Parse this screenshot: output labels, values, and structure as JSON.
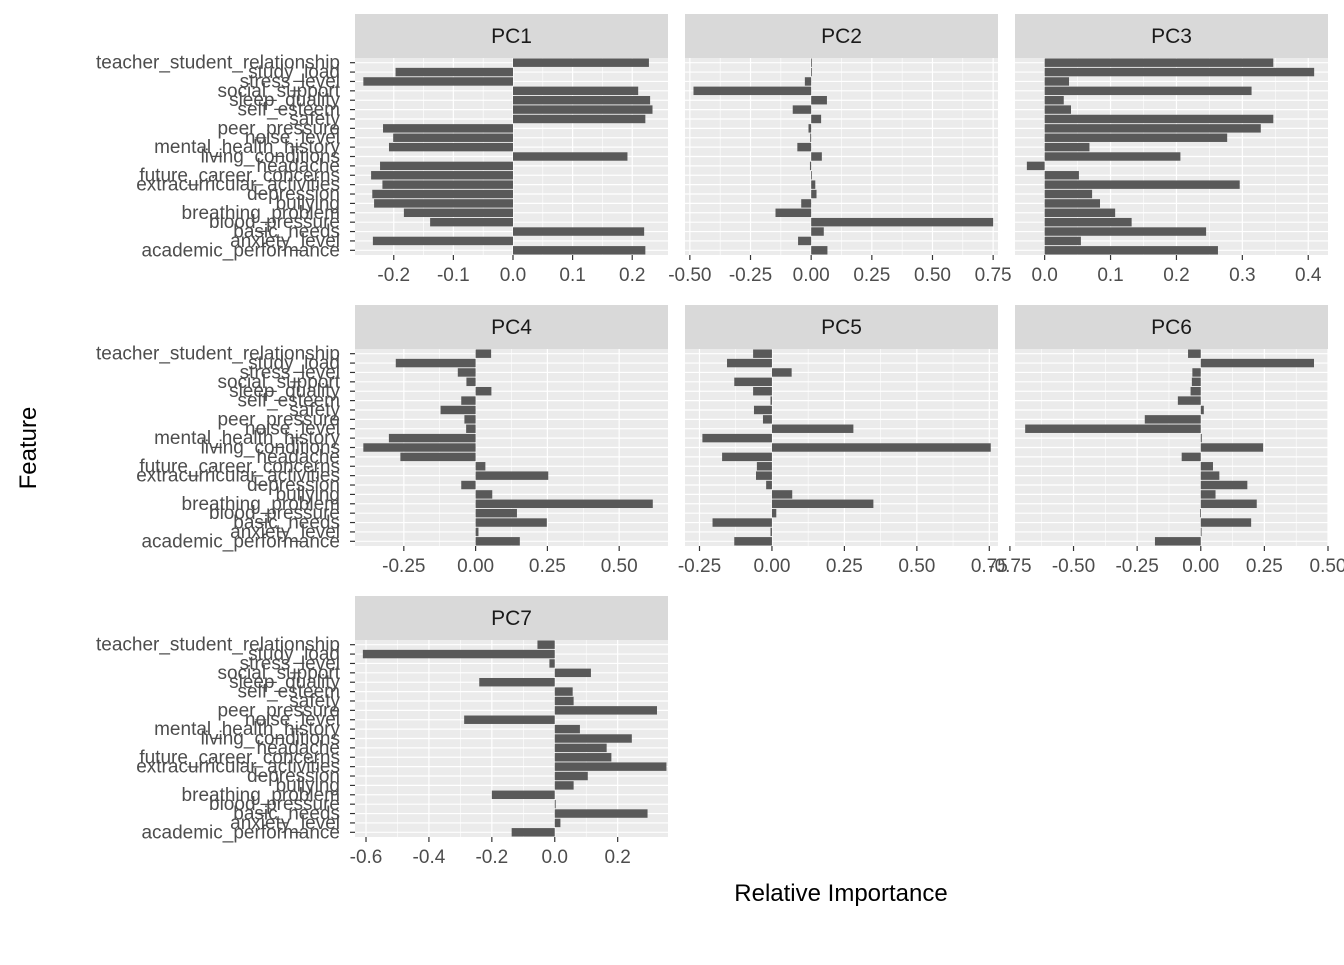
{
  "chart_data": {
    "type": "bar",
    "orientation": "horizontal",
    "facet_wrap": true,
    "grid": true,
    "xlabel": "Relative Importance",
    "ylabel": "Feature",
    "colors": {
      "bar": "#595959",
      "panel_bg": "#ebebeb",
      "strip_bg": "#d9d9d9",
      "grid": "#ffffff"
    },
    "categories": [
      "teacher_student_relationship",
      "study_load",
      "stress_level",
      "social_support",
      "sleep_quality",
      "self_esteem",
      "safety",
      "peer_pressure",
      "noise_level",
      "mental_health_history",
      "living_conditions",
      "headache",
      "future_career_concerns",
      "extracurricular_activities",
      "depression",
      "bullying",
      "breathing_problem",
      "blood_pressure",
      "basic_needs",
      "anxiety_level",
      "academic_performance"
    ],
    "panels": [
      {
        "title": "PC1",
        "xlim": [
          -0.265,
          0.26
        ],
        "ticks": [
          -0.2,
          -0.1,
          0.0,
          0.1,
          0.2
        ],
        "tick_labels": [
          "-0.2",
          "-0.1",
          "0.0",
          "0.1",
          "0.2"
        ],
        "values": [
          0.228,
          -0.197,
          -0.251,
          0.21,
          0.23,
          0.234,
          0.222,
          -0.218,
          -0.201,
          -0.208,
          0.192,
          -0.223,
          -0.238,
          -0.219,
          -0.236,
          -0.233,
          -0.183,
          -0.139,
          0.22,
          -0.235,
          0.222
        ]
      },
      {
        "title": "PC2",
        "xlim": [
          -0.52,
          0.77
        ],
        "ticks": [
          -0.5,
          -0.25,
          0.0,
          0.25,
          0.5,
          0.75
        ],
        "tick_labels": [
          "-0.50",
          "-0.25",
          "0.00",
          "0.25",
          "0.50",
          "0.75"
        ],
        "values": [
          0.003,
          0.002,
          -0.026,
          -0.485,
          0.065,
          -0.076,
          0.041,
          -0.011,
          -0.004,
          -0.057,
          0.044,
          -0.005,
          0.003,
          0.017,
          0.022,
          -0.041,
          -0.147,
          0.75,
          0.052,
          -0.054,
          0.067
        ]
      },
      {
        "title": "PC3",
        "xlim": [
          -0.045,
          0.43
        ],
        "ticks": [
          0.0,
          0.1,
          0.2,
          0.3,
          0.4
        ],
        "tick_labels": [
          "0.0",
          "0.1",
          "0.2",
          "0.3",
          "0.4"
        ],
        "values": [
          0.347,
          0.409,
          0.037,
          0.314,
          0.029,
          0.04,
          0.347,
          0.328,
          0.277,
          0.068,
          0.206,
          -0.027,
          0.052,
          0.296,
          0.072,
          0.084,
          0.107,
          0.132,
          0.245,
          0.055,
          0.263
        ]
      },
      {
        "title": "PC4",
        "xlim": [
          -0.42,
          0.67
        ],
        "ticks": [
          -0.25,
          0.0,
          0.25,
          0.5
        ],
        "tick_labels": [
          "-0.25",
          "0.00",
          "0.25",
          "0.50"
        ],
        "values": [
          0.054,
          -0.278,
          -0.062,
          -0.032,
          0.055,
          -0.05,
          -0.122,
          -0.039,
          -0.033,
          -0.302,
          -0.391,
          -0.262,
          0.034,
          0.253,
          -0.05,
          0.058,
          0.617,
          0.144,
          0.248,
          0.01,
          0.154
        ]
      },
      {
        "title": "PC5",
        "xlim": [
          -0.3,
          0.78
        ],
        "ticks": [
          -0.25,
          0.0,
          0.25,
          0.5,
          0.75
        ],
        "tick_labels": [
          "-0.25",
          "0.00",
          "0.25",
          "0.50",
          "0.75"
        ],
        "values": [
          -0.065,
          -0.155,
          0.068,
          -0.13,
          -0.065,
          -0.005,
          -0.062,
          -0.031,
          0.281,
          -0.24,
          0.755,
          -0.172,
          -0.052,
          -0.055,
          -0.02,
          0.07,
          0.35,
          0.015,
          -0.205,
          -0.005,
          -0.13
        ]
      },
      {
        "title": "PC6",
        "xlim": [
          -0.73,
          0.5
        ],
        "ticks": [
          -0.75,
          -0.5,
          -0.25,
          0.0,
          0.25,
          0.5
        ],
        "tick_labels": [
          "-0.75",
          "-0.50",
          "-0.25",
          "0.00",
          "0.25",
          "0.50"
        ],
        "values": [
          -0.05,
          0.445,
          -0.033,
          -0.035,
          -0.04,
          -0.09,
          0.012,
          -0.22,
          -0.69,
          0.004,
          0.245,
          -0.075,
          0.048,
          0.073,
          0.183,
          0.058,
          0.22,
          -0.003,
          0.198,
          0.001,
          -0.18
        ]
      },
      {
        "title": "PC7",
        "xlim": [
          -0.635,
          0.36
        ],
        "ticks": [
          -0.6,
          -0.4,
          -0.2,
          0.0,
          0.2
        ],
        "tick_labels": [
          "-0.6",
          "-0.4",
          "-0.2",
          "0.0",
          "0.2"
        ],
        "values": [
          -0.055,
          -0.61,
          -0.017,
          0.115,
          -0.24,
          0.057,
          0.06,
          0.325,
          -0.288,
          0.08,
          0.245,
          0.165,
          0.18,
          0.355,
          0.105,
          0.06,
          -0.2,
          0.003,
          0.295,
          0.018,
          -0.137
        ]
      }
    ]
  }
}
